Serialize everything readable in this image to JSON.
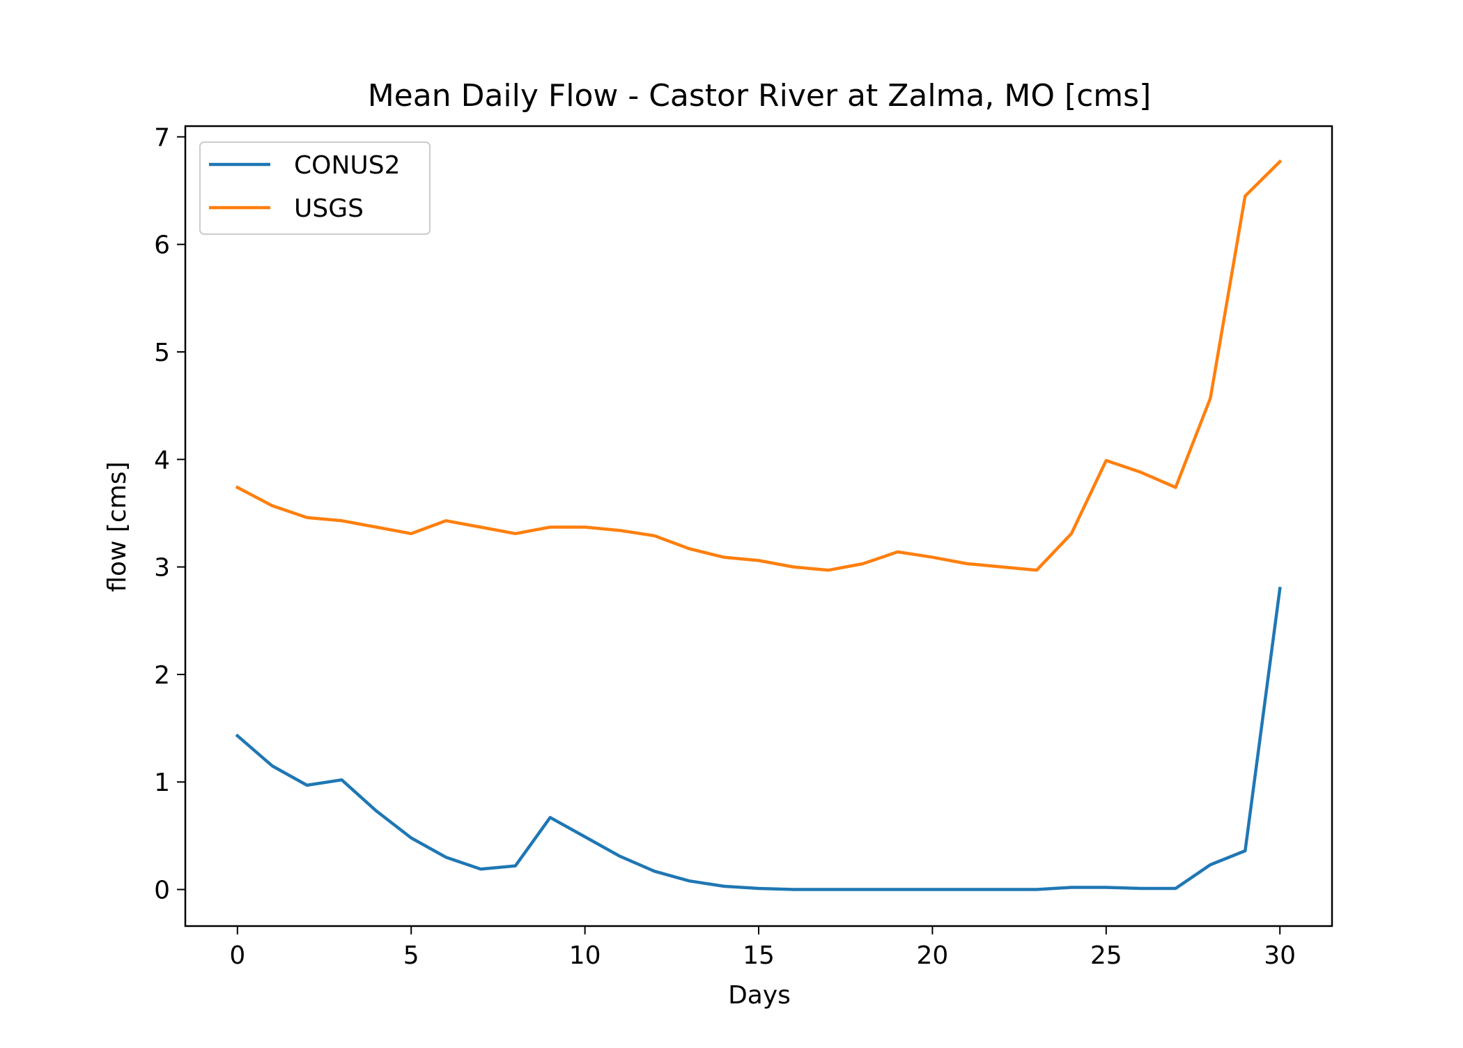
{
  "chart_data": {
    "type": "line",
    "title": "Mean Daily Flow - Castor River at Zalma, MO [cms]",
    "xlabel": "Days",
    "ylabel": "flow [cms]",
    "xlim": [
      -1.5,
      31.5
    ],
    "ylim": [
      -0.34,
      7.1
    ],
    "xticks": [
      0,
      5,
      10,
      15,
      20,
      25,
      30
    ],
    "yticks": [
      0,
      1,
      2,
      3,
      4,
      5,
      6,
      7
    ],
    "grid": false,
    "legend_position": "upper left",
    "x": [
      0,
      1,
      2,
      3,
      4,
      5,
      6,
      7,
      8,
      9,
      10,
      11,
      12,
      13,
      14,
      15,
      16,
      17,
      18,
      19,
      20,
      21,
      22,
      23,
      24,
      25,
      26,
      27,
      28,
      29,
      30
    ],
    "series": [
      {
        "name": "CONUS2",
        "color": "#1f77b4",
        "values": [
          1.43,
          1.15,
          0.97,
          1.02,
          0.73,
          0.48,
          0.3,
          0.19,
          0.22,
          0.67,
          0.49,
          0.31,
          0.17,
          0.08,
          0.03,
          0.01,
          0.0,
          0.0,
          0.0,
          0.0,
          0.0,
          0.0,
          0.0,
          0.0,
          0.02,
          0.02,
          0.01,
          0.01,
          0.23,
          0.36,
          2.8
        ]
      },
      {
        "name": "USGS",
        "color": "#ff7f0e",
        "values": [
          3.74,
          3.57,
          3.46,
          3.43,
          3.37,
          3.31,
          3.43,
          3.37,
          3.31,
          3.37,
          3.37,
          3.34,
          3.29,
          3.17,
          3.09,
          3.06,
          3.0,
          2.97,
          3.03,
          3.14,
          3.09,
          3.03,
          3.0,
          2.97,
          3.31,
          3.99,
          3.88,
          3.74,
          4.57,
          6.45,
          6.77
        ]
      }
    ]
  }
}
